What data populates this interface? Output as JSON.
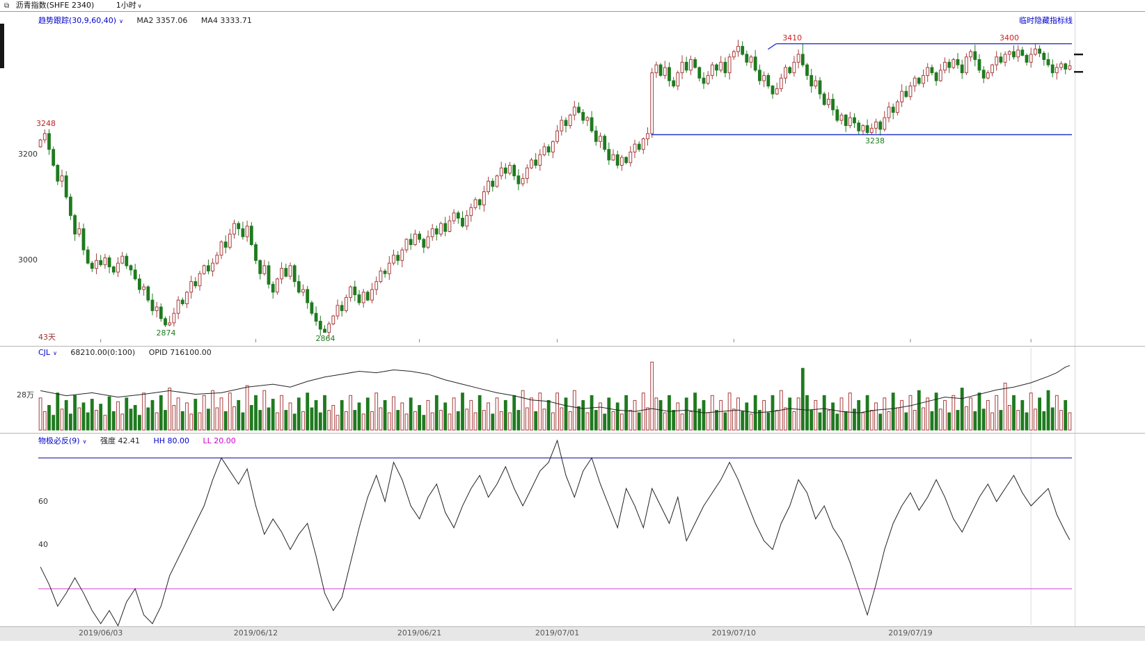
{
  "title_bar": {
    "instrument": "沥青指数(SHFE 2340)",
    "period": "1小时",
    "caret": "∨"
  },
  "main_panel": {
    "indicator": "趋势跟踪(30,9,60,40)",
    "caret": "∨",
    "ma2": "MA2 3357.06",
    "ma4": "MA4 3333.71",
    "hide_link": "临时隐藏指标线",
    "days_label": "43天",
    "y_axis_labels": [
      {
        "price": 3200,
        "text": "3200"
      },
      {
        "price": 3000,
        "text": "3000"
      }
    ]
  },
  "volume_panel": {
    "name": "CJL",
    "caret": "∨",
    "value": "68210.00(0:100)",
    "opid": "OPID 716100.00",
    "y_axis_label": {
      "value": 28,
      "text": "28万"
    }
  },
  "osc_panel": {
    "name": "物极必反(9)",
    "caret": "∨",
    "strength": "强度 42.41",
    "hh": "HH 80.00",
    "ll": "LL 20.00",
    "y_axis_labels": [
      {
        "value": 60,
        "text": "60"
      },
      {
        "value": 40,
        "text": "40"
      }
    ]
  },
  "chart_data": {
    "type": "candlestick",
    "panels": [
      "price",
      "volume",
      "oscillator"
    ],
    "price_range": [
      2845,
      3440
    ],
    "open_first": 3215,
    "closes": [
      3228,
      3240,
      3210,
      3180,
      3150,
      3160,
      3120,
      3085,
      3050,
      3060,
      3020,
      2995,
      2985,
      3000,
      2992,
      3005,
      2988,
      2978,
      2995,
      3008,
      2990,
      2982,
      2965,
      2945,
      2950,
      2925,
      2905,
      2912,
      2890,
      2878,
      2882,
      2900,
      2925,
      2918,
      2940,
      2960,
      2952,
      2975,
      2990,
      2980,
      2995,
      3010,
      3035,
      3025,
      3050,
      3070,
      3060,
      3045,
      3065,
      3030,
      3000,
      2975,
      2990,
      2955,
      2940,
      2965,
      2985,
      2970,
      2990,
      2960,
      2940,
      2945,
      2920,
      2900,
      2885,
      2870,
      2864,
      2880,
      2895,
      2915,
      2905,
      2930,
      2950,
      2935,
      2920,
      2940,
      2925,
      2945,
      2960,
      2980,
      2975,
      2995,
      3010,
      3000,
      3020,
      3040,
      3030,
      3050,
      3040,
      3025,
      3045,
      3060,
      3050,
      3070,
      3055,
      3075,
      3090,
      3080,
      3065,
      3085,
      3100,
      3115,
      3105,
      3130,
      3150,
      3140,
      3160,
      3175,
      3165,
      3180,
      3160,
      3145,
      3155,
      3175,
      3190,
      3180,
      3200,
      3215,
      3205,
      3225,
      3245,
      3265,
      3255,
      3275,
      3290,
      3280,
      3265,
      3270,
      3245,
      3225,
      3235,
      3210,
      3190,
      3200,
      3180,
      3195,
      3185,
      3205,
      3220,
      3210,
      3230,
      3240,
      3355,
      3370,
      3350,
      3365,
      3340,
      3330,
      3355,
      3375,
      3360,
      3380,
      3365,
      3345,
      3335,
      3350,
      3370,
      3360,
      3375,
      3355,
      3385,
      3395,
      3405,
      3390,
      3375,
      3385,
      3360,
      3340,
      3350,
      3330,
      3315,
      3325,
      3345,
      3365,
      3355,
      3375,
      3390,
      3370,
      3350,
      3330,
      3340,
      3315,
      3295,
      3305,
      3285,
      3265,
      3275,
      3255,
      3270,
      3260,
      3245,
      3255,
      3242,
      3250,
      3262,
      3248,
      3270,
      3290,
      3280,
      3300,
      3320,
      3310,
      3330,
      3345,
      3335,
      3350,
      3365,
      3355,
      3340,
      3360,
      3375,
      3365,
      3380,
      3370,
      3355,
      3385,
      3395,
      3380,
      3360,
      3345,
      3355,
      3370,
      3385,
      3375,
      3390,
      3395,
      3385,
      3398,
      3388,
      3375,
      3390,
      3400,
      3392,
      3380,
      3370,
      3355,
      3365,
      3372,
      3362,
      3368
    ],
    "extremes": [
      {
        "bar": 1,
        "high": 3248,
        "label": "3248",
        "label_color": "#bb2222",
        "place": "left"
      },
      {
        "bar": 29,
        "low": 2874,
        "label": "2874",
        "label_color": "#1e7a1e",
        "place": "below"
      },
      {
        "bar": 66,
        "low": 2864,
        "label": "2864",
        "label_color": "#1e7a1e",
        "place": "below"
      },
      {
        "bar": 142,
        "low": 3232
      },
      {
        "bar": 177,
        "high": 3410
      },
      {
        "bar": 190,
        "low": 3239
      },
      {
        "bar": 192,
        "low": 3238
      },
      {
        "bar": 194,
        "low": 3240
      }
    ],
    "hlines": [
      {
        "price": 3410,
        "from": 0.714,
        "hook": true,
        "labels": [
          {
            "text": "3410",
            "pos": 0.72,
            "color": "#cc2222",
            "dy": -14
          },
          {
            "text": "3400",
            "pos": 0.93,
            "color": "#cc2222",
            "dy": -14
          }
        ]
      },
      {
        "price": 3238,
        "from": 0.593,
        "hook": false,
        "labels": [
          {
            "text": "3238",
            "pos": 0.8,
            "color": "#1e7a1e",
            "dy": 4
          }
        ]
      }
    ],
    "right_price_markers": [
      3390,
      3357
    ],
    "x_ticks": [
      {
        "bar": 14,
        "label": "2019/06/03"
      },
      {
        "bar": 50,
        "label": "2019/06/12"
      },
      {
        "bar": 88,
        "label": "2019/06/21"
      },
      {
        "bar": 120,
        "label": "2019/07/01"
      },
      {
        "bar": 161,
        "label": "2019/07/10"
      },
      {
        "bar": 202,
        "label": "2019/07/19"
      },
      {
        "bar": 230,
        "label": ""
      }
    ],
    "volumes": [
      26,
      15,
      20,
      12,
      30,
      17,
      24,
      13,
      28,
      18,
      22,
      14,
      25,
      16,
      21,
      12,
      27,
      15,
      23,
      13,
      26,
      17,
      20,
      12,
      30,
      18,
      24,
      14,
      28,
      16,
      34,
      20,
      26,
      15,
      22,
      13,
      25,
      14,
      28,
      17,
      32,
      18,
      26,
      15,
      30,
      19,
      24,
      14,
      36,
      20,
      28,
      16,
      32,
      18,
      25,
      14,
      28,
      16,
      22,
      13,
      26,
      15,
      30,
      18,
      24,
      14,
      28,
      16,
      20,
      12,
      24,
      15,
      28,
      16,
      22,
      13,
      26,
      15,
      30,
      18,
      24,
      14,
      27,
      16,
      22,
      13,
      26,
      15,
      20,
      12,
      24,
      14,
      28,
      16,
      22,
      13,
      26,
      15,
      30,
      17,
      24,
      14,
      28,
      16,
      22,
      13,
      26,
      15,
      24,
      14,
      28,
      16,
      32,
      18,
      26,
      15,
      30,
      17,
      24,
      14,
      30,
      18,
      26,
      15,
      32,
      19,
      24,
      14,
      28,
      16,
      22,
      13,
      26,
      15,
      22,
      13,
      28,
      16,
      24,
      14,
      30,
      18,
      55,
      26,
      24,
      14,
      28,
      16,
      22,
      13,
      26,
      15,
      30,
      17,
      24,
      14,
      28,
      16,
      24,
      14,
      30,
      17,
      26,
      15,
      22,
      13,
      28,
      16,
      24,
      14,
      28,
      16,
      32,
      18,
      26,
      15,
      26,
      50,
      28,
      16,
      24,
      14,
      28,
      16,
      22,
      13,
      26,
      15,
      30,
      17,
      24,
      14,
      28,
      16,
      22,
      13,
      26,
      15,
      30,
      18,
      24,
      14,
      28,
      16,
      32,
      18,
      26,
      15,
      30,
      17,
      24,
      14,
      28,
      16,
      34,
      19,
      26,
      15,
      30,
      17,
      24,
      14,
      28,
      16,
      38,
      20,
      28,
      16,
      24,
      14,
      30,
      17,
      26,
      15,
      32,
      18,
      28,
      16,
      24,
      14
    ],
    "volume_max": 58,
    "opid_line": [
      [
        0,
        0.55
      ],
      [
        6,
        0.48
      ],
      [
        12,
        0.52
      ],
      [
        18,
        0.46
      ],
      [
        24,
        0.5
      ],
      [
        30,
        0.55
      ],
      [
        36,
        0.5
      ],
      [
        42,
        0.52
      ],
      [
        48,
        0.6
      ],
      [
        54,
        0.64
      ],
      [
        58,
        0.6
      ],
      [
        62,
        0.68
      ],
      [
        66,
        0.74
      ],
      [
        70,
        0.78
      ],
      [
        74,
        0.82
      ],
      [
        78,
        0.8
      ],
      [
        82,
        0.84
      ],
      [
        86,
        0.82
      ],
      [
        90,
        0.78
      ],
      [
        94,
        0.7
      ],
      [
        98,
        0.64
      ],
      [
        102,
        0.58
      ],
      [
        106,
        0.52
      ],
      [
        110,
        0.48
      ],
      [
        114,
        0.42
      ],
      [
        118,
        0.4
      ],
      [
        122,
        0.34
      ],
      [
        126,
        0.3
      ],
      [
        130,
        0.32
      ],
      [
        134,
        0.28
      ],
      [
        138,
        0.26
      ],
      [
        142,
        0.3
      ],
      [
        146,
        0.26
      ],
      [
        150,
        0.28
      ],
      [
        154,
        0.24
      ],
      [
        158,
        0.26
      ],
      [
        162,
        0.28
      ],
      [
        166,
        0.24
      ],
      [
        170,
        0.26
      ],
      [
        174,
        0.3
      ],
      [
        178,
        0.28
      ],
      [
        182,
        0.3
      ],
      [
        186,
        0.26
      ],
      [
        190,
        0.24
      ],
      [
        194,
        0.28
      ],
      [
        198,
        0.3
      ],
      [
        202,
        0.34
      ],
      [
        206,
        0.4
      ],
      [
        210,
        0.46
      ],
      [
        214,
        0.44
      ],
      [
        218,
        0.5
      ],
      [
        222,
        0.56
      ],
      [
        226,
        0.6
      ],
      [
        230,
        0.66
      ],
      [
        234,
        0.75
      ],
      [
        236,
        0.8
      ],
      [
        238,
        0.88
      ],
      [
        239,
        0.9
      ]
    ],
    "oscillator": {
      "hh": 80,
      "ll": 20,
      "y_range": [
        0,
        100
      ],
      "last_value": 42.41,
      "points": [
        [
          0,
          30
        ],
        [
          2,
          22
        ],
        [
          4,
          12
        ],
        [
          6,
          18
        ],
        [
          8,
          25
        ],
        [
          10,
          18
        ],
        [
          12,
          10
        ],
        [
          14,
          4
        ],
        [
          16,
          10
        ],
        [
          18,
          3
        ],
        [
          20,
          14
        ],
        [
          22,
          20
        ],
        [
          24,
          8
        ],
        [
          26,
          4
        ],
        [
          28,
          12
        ],
        [
          30,
          26
        ],
        [
          32,
          34
        ],
        [
          34,
          42
        ],
        [
          36,
          50
        ],
        [
          38,
          58
        ],
        [
          40,
          70
        ],
        [
          42,
          80
        ],
        [
          44,
          74
        ],
        [
          46,
          68
        ],
        [
          48,
          75
        ],
        [
          50,
          58
        ],
        [
          52,
          45
        ],
        [
          54,
          52
        ],
        [
          56,
          46
        ],
        [
          58,
          38
        ],
        [
          60,
          45
        ],
        [
          62,
          50
        ],
        [
          64,
          35
        ],
        [
          66,
          18
        ],
        [
          68,
          10
        ],
        [
          70,
          16
        ],
        [
          72,
          32
        ],
        [
          74,
          48
        ],
        [
          76,
          62
        ],
        [
          78,
          72
        ],
        [
          80,
          60
        ],
        [
          82,
          78
        ],
        [
          84,
          70
        ],
        [
          86,
          58
        ],
        [
          88,
          52
        ],
        [
          90,
          62
        ],
        [
          92,
          68
        ],
        [
          94,
          55
        ],
        [
          96,
          48
        ],
        [
          98,
          58
        ],
        [
          100,
          66
        ],
        [
          102,
          72
        ],
        [
          104,
          62
        ],
        [
          106,
          68
        ],
        [
          108,
          76
        ],
        [
          110,
          66
        ],
        [
          112,
          58
        ],
        [
          114,
          66
        ],
        [
          116,
          74
        ],
        [
          118,
          78
        ],
        [
          120,
          88
        ],
        [
          122,
          72
        ],
        [
          124,
          62
        ],
        [
          126,
          74
        ],
        [
          128,
          80
        ],
        [
          130,
          68
        ],
        [
          132,
          58
        ],
        [
          134,
          48
        ],
        [
          136,
          66
        ],
        [
          138,
          58
        ],
        [
          140,
          48
        ],
        [
          142,
          66
        ],
        [
          144,
          58
        ],
        [
          146,
          50
        ],
        [
          148,
          62
        ],
        [
          150,
          42
        ],
        [
          152,
          50
        ],
        [
          154,
          58
        ],
        [
          156,
          64
        ],
        [
          158,
          70
        ],
        [
          160,
          78
        ],
        [
          162,
          70
        ],
        [
          164,
          60
        ],
        [
          166,
          50
        ],
        [
          168,
          42
        ],
        [
          170,
          38
        ],
        [
          172,
          50
        ],
        [
          174,
          58
        ],
        [
          176,
          70
        ],
        [
          178,
          64
        ],
        [
          180,
          52
        ],
        [
          182,
          58
        ],
        [
          184,
          48
        ],
        [
          186,
          42
        ],
        [
          188,
          32
        ],
        [
          190,
          20
        ],
        [
          192,
          8
        ],
        [
          194,
          22
        ],
        [
          196,
          38
        ],
        [
          198,
          50
        ],
        [
          200,
          58
        ],
        [
          202,
          64
        ],
        [
          204,
          56
        ],
        [
          206,
          62
        ],
        [
          208,
          70
        ],
        [
          210,
          62
        ],
        [
          212,
          52
        ],
        [
          214,
          46
        ],
        [
          216,
          54
        ],
        [
          218,
          62
        ],
        [
          220,
          68
        ],
        [
          222,
          60
        ],
        [
          224,
          66
        ],
        [
          226,
          72
        ],
        [
          228,
          64
        ],
        [
          230,
          58
        ],
        [
          232,
          62
        ],
        [
          234,
          66
        ],
        [
          236,
          54
        ],
        [
          238,
          46
        ],
        [
          239,
          42.41
        ]
      ]
    },
    "colors": {
      "up": "#a83c3c",
      "down": "#1f7a1f",
      "level_line": "#2233cc",
      "hh_line": "#3333aa",
      "ll_line": "#d966d9",
      "line": "#222222"
    }
  }
}
